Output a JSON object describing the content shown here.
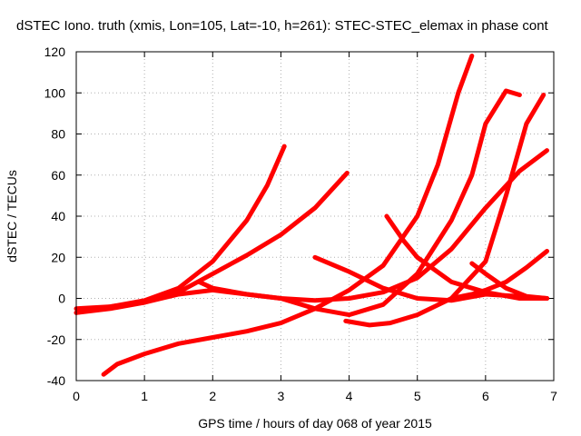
{
  "chart_data": {
    "type": "line",
    "title": "dSTEC Iono. truth (xmis, Lon=105, Lat=-10, h=261): STEC-STEC_elemax in phase cont",
    "xlabel": "GPS time / hours of day 068 of year 2015",
    "ylabel": "dSTEC  / TECUs",
    "xlim": [
      0,
      7
    ],
    "ylim": [
      -40,
      120
    ],
    "xticks": [
      0,
      1,
      2,
      3,
      4,
      5,
      6,
      7
    ],
    "yticks": [
      -40,
      -20,
      0,
      20,
      40,
      60,
      80,
      100,
      120
    ],
    "grid": true,
    "color": "#ff0000",
    "marker": "+",
    "series": [
      {
        "x": [
          0,
          0.5,
          1.0,
          1.5,
          2.0,
          2.5,
          2.8,
          3.05
        ],
        "y": [
          -5,
          -4,
          -1,
          5,
          18,
          38,
          55,
          74
        ]
      },
      {
        "x": [
          0,
          0.5,
          1.0,
          1.5,
          2.0,
          2.5,
          3.0,
          3.5,
          3.97
        ],
        "y": [
          -7,
          -5,
          -2,
          3,
          12,
          21,
          31,
          44,
          61
        ]
      },
      {
        "x": [
          0.4,
          0.6,
          1.0,
          1.5,
          2.0,
          2.5,
          3.0,
          3.5,
          4.0,
          4.5,
          5.0,
          5.3,
          5.6,
          5.8
        ],
        "y": [
          -37,
          -32,
          -27,
          -22,
          -19,
          -16,
          -12,
          -5,
          4,
          16,
          40,
          65,
          100,
          118
        ]
      },
      {
        "x": [
          0,
          0.5,
          1.0,
          1.5,
          2.0,
          2.5,
          3.0,
          3.5,
          4.0,
          4.5,
          5.0,
          5.5,
          5.8,
          6.0,
          6.3,
          6.5
        ],
        "y": [
          -7,
          -4,
          -2,
          2,
          4,
          2,
          0,
          -5,
          -8,
          -3,
          12,
          38,
          60,
          85,
          101,
          99
        ]
      },
      {
        "x": [
          1.8,
          2.0,
          2.5,
          3.0,
          3.5,
          4.0,
          4.5,
          5.0,
          5.5,
          6.0,
          6.5,
          6.9
        ],
        "y": [
          8,
          5,
          2,
          0,
          -1,
          0,
          3,
          10,
          24,
          44,
          62,
          72
        ]
      },
      {
        "x": [
          3.5,
          4.0,
          4.5,
          5.0,
          5.5,
          6.0,
          6.5,
          6.9
        ],
        "y": [
          20,
          13,
          5,
          0,
          -1,
          2,
          1,
          0
        ]
      },
      {
        "x": [
          3.95,
          4.3,
          4.6,
          5.0,
          5.5,
          6.0,
          6.3,
          6.6,
          6.85
        ],
        "y": [
          -11,
          -13,
          -12,
          -8,
          0,
          18,
          50,
          85,
          99
        ]
      },
      {
        "x": [
          4.55,
          4.8,
          5.0,
          5.5,
          6.0,
          6.5,
          6.9
        ],
        "y": [
          40,
          28,
          20,
          8,
          3,
          0,
          0
        ]
      },
      {
        "x": [
          5.8,
          6.0,
          6.3,
          6.6,
          6.9
        ],
        "y": [
          17,
          12,
          5,
          1,
          0
        ]
      },
      {
        "x": [
          5.5,
          5.8,
          6.0,
          6.3,
          6.6,
          6.9
        ],
        "y": [
          0,
          2,
          4,
          8,
          15,
          23
        ]
      }
    ]
  }
}
